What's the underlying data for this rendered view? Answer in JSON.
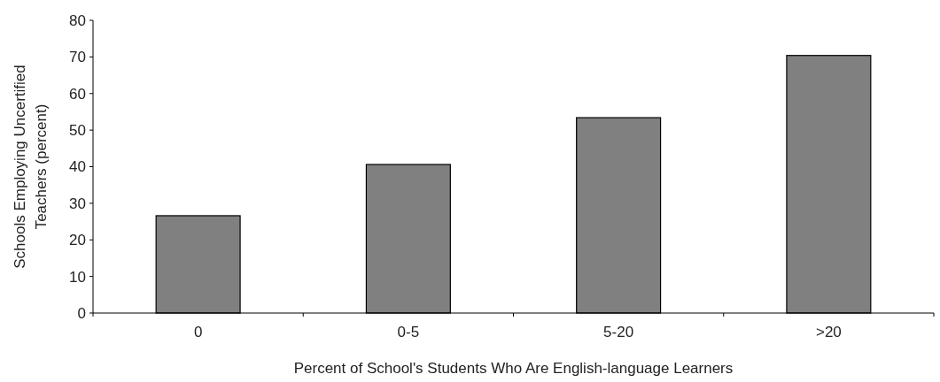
{
  "chart_data": {
    "type": "bar",
    "xlabel": "Percent of School's Students Who Are English-language Learners",
    "ylabel": "Schools Employing Uncertified Teachers (percent)",
    "categories": [
      "0",
      "0-5",
      "5-20",
      ">20"
    ],
    "values": [
      26.6,
      40.6,
      53.4,
      70.4
    ],
    "color": "#808080",
    "ylim": [
      0,
      80
    ],
    "yticks": [
      0,
      10,
      20,
      30,
      40,
      50,
      60,
      70,
      80
    ],
    "grid": false
  }
}
